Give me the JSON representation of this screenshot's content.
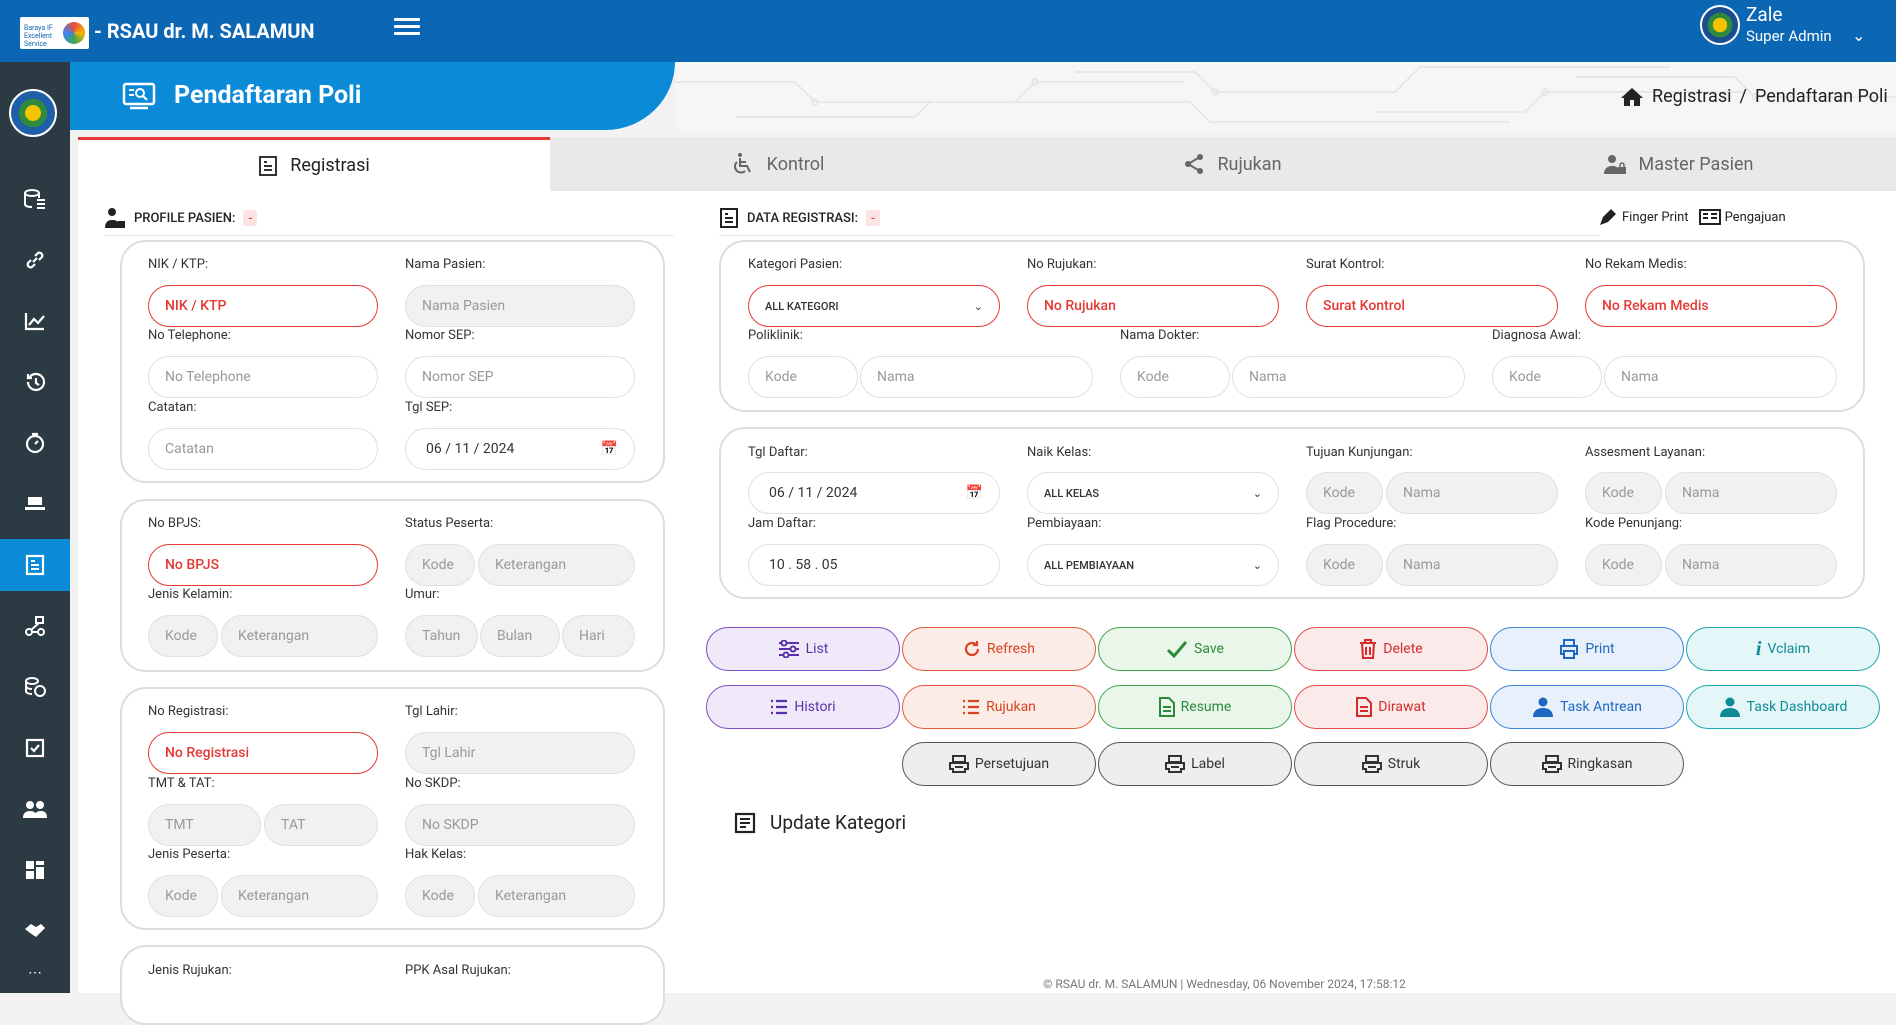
{
  "app": {
    "logo_text": "Baraya IF Excellent Service",
    "title": "- RSAU dr. M. SALAMUN",
    "user_name": "Zale",
    "user_role": "Super Admin"
  },
  "sidebar": {
    "items": [
      "database-icon",
      "link-icon",
      "chart-line-icon",
      "history-icon",
      "timer-icon",
      "bed-icon",
      "registration-icon",
      "flow-icon",
      "money-icon",
      "checkbox-icon",
      "users-icon",
      "dashboard-icon",
      "handshake-icon"
    ],
    "active": 6
  },
  "page": {
    "title": "Pendaftaran Poli",
    "breadcrumb": [
      "Registrasi",
      "/",
      "Pendaftaran Poli"
    ]
  },
  "tabs": [
    {
      "label": "Registrasi",
      "icon": "document-icon"
    },
    {
      "label": "Kontrol",
      "icon": "wheelchair-icon"
    },
    {
      "label": "Rujukan",
      "icon": "share-icon"
    },
    {
      "label": "Master Pasien",
      "icon": "user-lock-icon"
    }
  ],
  "profile": {
    "heading": "PROFILE PASIEN:",
    "dash": "-",
    "c1": {
      "nik_label": "NIK / KTP:",
      "nik_ph": "NIK / KTP",
      "nama_label": "Nama Pasien:",
      "nama_ph": "Nama Pasien",
      "tel_label": "No Telephone:",
      "tel_ph": "No Telephone",
      "sep_label": "Nomor SEP:",
      "sep_ph": "Nomor SEP",
      "cat_label": "Catatan:",
      "cat_ph": "Catatan",
      "tglsep_label": "Tgl SEP:",
      "tglsep_val": "06 / 11 / 2024"
    },
    "c2": {
      "bpjs_label": "No BPJS:",
      "bpjs_ph": "No BPJS",
      "status_label": "Status Peserta:",
      "kode": "Kode",
      "ket": "Keterangan",
      "jk_label": "Jenis Kelamin:",
      "umur_label": "Umur:",
      "tahun": "Tahun",
      "bulan": "Bulan",
      "hari": "Hari"
    },
    "c3": {
      "noreg_label": "No Registrasi:",
      "noreg_ph": "No Registrasi",
      "tgllahir_label": "Tgl Lahir:",
      "tgllahir_ph": "Tgl Lahir",
      "tmt_label": "TMT & TAT:",
      "tmt": "TMT",
      "tat": "TAT",
      "skdp_label": "No SKDP:",
      "skdp_ph": "No SKDP",
      "jp_label": "Jenis Peserta:",
      "hk_label": "Hak Kelas:"
    },
    "c4": {
      "jr_label": "Jenis Rujukan:",
      "ppk_label": "PPK Asal Rujukan:"
    }
  },
  "registrasi": {
    "heading": "DATA REGISTRASI:",
    "dash": "-",
    "finger": "Finger Print",
    "pengajuan": "Pengajuan",
    "r1": {
      "kat_label": "Kategori Pasien:",
      "kat_val": "ALL KATEGORI",
      "rujukan_label": "No Rujukan:",
      "rujukan_ph": "No Rujukan",
      "kontrol_label": "Surat Kontrol:",
      "kontrol_ph": "Surat Kontrol",
      "rm_label": "No Rekam Medis:",
      "rm_ph": "No Rekam Medis",
      "poli_label": "Poliklinik:",
      "dokter_label": "Nama Dokter:",
      "diag_label": "Diagnosa Awal:",
      "kode": "Kode",
      "nama": "Nama"
    },
    "r2": {
      "tgl_label": "Tgl Daftar:",
      "tgl_val": "06 / 11 / 2024",
      "kelas_label": "Naik Kelas:",
      "kelas_val": "ALL KELAS",
      "tujuan_label": "Tujuan Kunjungan:",
      "assess_label": "Assesment Layanan:",
      "jam_label": "Jam Daftar:",
      "jam_val": "10 . 58 . 05",
      "biaya_label": "Pembiayaan:",
      "biaya_val": "ALL PEMBIAYAAN",
      "flag_label": "Flag Procedure:",
      "penunjang_label": "Kode Penunjang:"
    }
  },
  "buttons": {
    "row1": [
      "List",
      "Refresh",
      "Save",
      "Delete",
      "Print",
      "Vclaim"
    ],
    "row2": [
      "Histori",
      "Rujukan",
      "Resume",
      "Dirawat",
      "Task Antrean",
      "Task Dashboard"
    ],
    "row3": [
      "Persetujuan",
      "Label",
      "Struk",
      "Ringkasan"
    ]
  },
  "update": {
    "label": "Update Kategori"
  },
  "footer": {
    "text": "© RSAU dr. M. SALAMUN | Wednesday, 06 November 2024, 17:58:12"
  }
}
